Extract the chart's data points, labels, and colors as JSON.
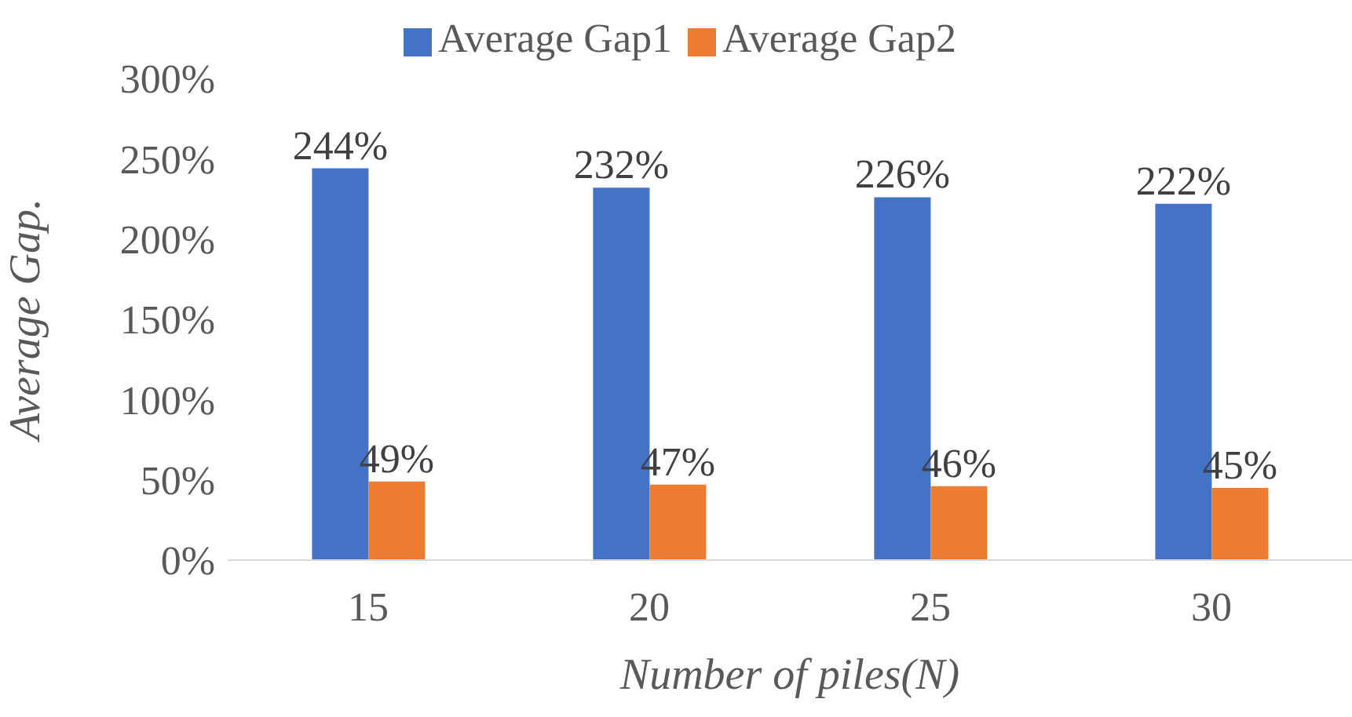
{
  "chart_data": {
    "type": "bar",
    "xlabel": "Number of piles(N)",
    "ylabel": "Average Gap.",
    "categories": [
      "15",
      "20",
      "25",
      "30"
    ],
    "series": [
      {
        "name": "Average Gap1",
        "color": "#4472c4",
        "values": [
          244,
          232,
          226,
          222
        ],
        "value_labels": [
          "244%",
          "232%",
          "226%",
          "222%"
        ]
      },
      {
        "name": "Average Gap2",
        "color": "#ed7d31",
        "values": [
          49,
          47,
          46,
          45
        ],
        "value_labels": [
          "49%",
          "47%",
          "46%",
          "45%"
        ]
      }
    ],
    "ylim": [
      0,
      300
    ],
    "yticks": [
      {
        "value": 0,
        "label": "0%"
      },
      {
        "value": 50,
        "label": "50%"
      },
      {
        "value": 100,
        "label": "100%"
      },
      {
        "value": 150,
        "label": "150%"
      },
      {
        "value": 200,
        "label": "200%"
      },
      {
        "value": 250,
        "label": "250%"
      },
      {
        "value": 300,
        "label": "300%"
      }
    ],
    "grid": false,
    "legend": "top"
  }
}
